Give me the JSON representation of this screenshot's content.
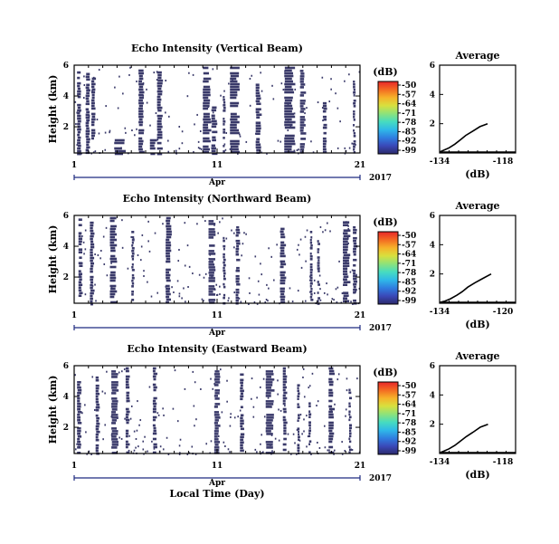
{
  "chart_data": [
    {
      "type": "heatmap",
      "title": "Echo Intensity (Vertical Beam)",
      "ylabel": "Height (km)",
      "y_ticks": [
        "6",
        "4",
        "2"
      ],
      "x_ticks": [
        "1",
        "11",
        "21"
      ],
      "month_label": "Apr",
      "year_label": "2017",
      "colorbar": {
        "unit": "(dB)",
        "ticks": [
          "-50",
          "-57",
          "-64",
          "-71",
          "-78",
          "-85",
          "-92",
          "-99"
        ],
        "colors": [
          "#2c2a6b",
          "#3a48b8",
          "#2f7de0",
          "#2fb8e8",
          "#46dcc0",
          "#8ee27a",
          "#d8e03e",
          "#f6b22a",
          "#f36a22",
          "#e8262a"
        ]
      },
      "bands": [
        [
          1.2,
          1.5,
          0.3,
          5.6
        ],
        [
          1.8,
          2.1,
          0.3,
          5.5
        ],
        [
          2.2,
          2.5,
          1.0,
          5.2
        ],
        [
          3.8,
          4.6,
          0.3,
          1.2
        ],
        [
          5.5,
          5.9,
          0.3,
          5.9
        ],
        [
          6.3,
          6.8,
          0.3,
          1.2
        ],
        [
          6.8,
          7.2,
          0.3,
          5.6
        ],
        [
          10.0,
          10.6,
          0.3,
          5.9
        ],
        [
          10.6,
          11.0,
          0.3,
          3.5
        ],
        [
          11.4,
          11.6,
          0.3,
          4.0
        ],
        [
          11.9,
          12.6,
          0.3,
          5.9
        ],
        [
          13.7,
          14.1,
          0.3,
          4.8
        ],
        [
          15.7,
          16.5,
          0.3,
          5.9
        ],
        [
          16.8,
          17.2,
          0.3,
          5.7
        ],
        [
          18.4,
          18.7,
          0.3,
          3.6
        ],
        [
          20.5,
          20.7,
          0.3,
          5.0
        ]
      ],
      "noise_density": 0.05,
      "average": {
        "title": "Average",
        "xlabel": "(dB)",
        "x_ticks": [
          "-134",
          "-118"
        ],
        "xlim": [
          -134,
          -118
        ],
        "y_ticks": [
          "6",
          "4",
          "2"
        ],
        "ylim": [
          0,
          6
        ],
        "profile": [
          [
            -123.9,
            2.0
          ],
          [
            -125.5,
            1.8
          ],
          [
            -127.0,
            1.5
          ],
          [
            -128.5,
            1.2
          ],
          [
            -129.6,
            0.9
          ],
          [
            -130.8,
            0.6
          ],
          [
            -132.0,
            0.35
          ],
          [
            -133.2,
            0.18
          ],
          [
            -133.9,
            0.08
          ]
        ]
      }
    },
    {
      "type": "heatmap",
      "title": "Echo Intensity (Northward Beam)",
      "ylabel": "Height (km)",
      "y_ticks": [
        "6",
        "4",
        "2"
      ],
      "x_ticks": [
        "1",
        "11",
        "21"
      ],
      "month_label": "Apr",
      "year_label": "2017",
      "colorbar": {
        "unit": "(dB)",
        "ticks": [
          "-50",
          "-57",
          "-64",
          "-71",
          "-78",
          "-85",
          "-92",
          "-99"
        ],
        "colors": [
          "#2c2a6b",
          "#3a48b8",
          "#2f7de0",
          "#2fb8e8",
          "#46dcc0",
          "#8ee27a",
          "#d8e03e",
          "#f6b22a",
          "#f36a22",
          "#e8262a"
        ]
      },
      "bands": [
        [
          1.3,
          1.6,
          0.3,
          5.8
        ],
        [
          2.1,
          2.4,
          0.3,
          5.6
        ],
        [
          3.5,
          4.0,
          0.3,
          5.9
        ],
        [
          5.0,
          5.2,
          0.3,
          5.0
        ],
        [
          7.4,
          7.8,
          0.3,
          5.9
        ],
        [
          10.4,
          10.9,
          0.3,
          5.7
        ],
        [
          11.4,
          11.6,
          0.3,
          4.6
        ],
        [
          12.3,
          12.6,
          0.3,
          5.3
        ],
        [
          15.4,
          15.8,
          0.3,
          5.2
        ],
        [
          17.5,
          17.7,
          0.3,
          5.0
        ],
        [
          18.0,
          18.2,
          0.3,
          4.4
        ],
        [
          19.8,
          20.3,
          0.3,
          5.8
        ],
        [
          20.5,
          20.8,
          0.3,
          5.3
        ]
      ],
      "noise_density": 0.06,
      "average": {
        "title": "Average",
        "xlabel": "(dB)",
        "x_ticks": [
          "-134",
          "-120"
        ],
        "xlim": [
          -134,
          -120
        ],
        "y_ticks": [
          "6",
          "4",
          "2"
        ],
        "ylim": [
          0,
          6
        ],
        "profile": [
          [
            -124.5,
            2.0
          ],
          [
            -126.0,
            1.7
          ],
          [
            -127.5,
            1.4
          ],
          [
            -128.8,
            1.1
          ],
          [
            -129.8,
            0.8
          ],
          [
            -130.8,
            0.55
          ],
          [
            -132.0,
            0.3
          ],
          [
            -133.0,
            0.15
          ],
          [
            -133.9,
            0.06
          ]
        ]
      }
    },
    {
      "type": "heatmap",
      "title": "Echo Intensity (Eastward Beam)",
      "ylabel": "Height (km)",
      "y_ticks": [
        "6",
        "4",
        "2"
      ],
      "x_ticks": [
        "1",
        "11",
        "21"
      ],
      "month_label": "Apr",
      "year_label": "2017",
      "xlabel": "Local Time (Day)",
      "colorbar": {
        "unit": "(dB)",
        "ticks": [
          "-50",
          "-57",
          "-64",
          "-71",
          "-78",
          "-85",
          "-92",
          "-99"
        ],
        "colors": [
          "#2c2a6b",
          "#3a48b8",
          "#2f7de0",
          "#2fb8e8",
          "#46dcc0",
          "#8ee27a",
          "#d8e03e",
          "#f6b22a",
          "#f36a22",
          "#e8262a"
        ]
      },
      "bands": [
        [
          1.2,
          1.5,
          0.3,
          5.0
        ],
        [
          2.5,
          2.8,
          0.3,
          5.3
        ],
        [
          3.6,
          4.1,
          0.3,
          5.7
        ],
        [
          4.6,
          4.9,
          0.3,
          5.9
        ],
        [
          6.5,
          6.8,
          0.3,
          5.9
        ],
        [
          10.8,
          11.2,
          0.3,
          5.7
        ],
        [
          12.6,
          12.9,
          0.3,
          5.5
        ],
        [
          14.4,
          15.0,
          0.3,
          5.7
        ],
        [
          15.6,
          15.9,
          0.3,
          5.9
        ],
        [
          16.6,
          16.8,
          0.3,
          4.8
        ],
        [
          17.4,
          17.6,
          0.3,
          3.8
        ],
        [
          18.8,
          19.2,
          0.3,
          5.9
        ],
        [
          20.2,
          20.4,
          0.3,
          4.5
        ]
      ],
      "noise_density": 0.06,
      "average": {
        "title": "Average",
        "xlabel": "(dB)",
        "x_ticks": [
          "-134",
          "-118"
        ],
        "xlim": [
          -134,
          -118
        ],
        "y_ticks": [
          "6",
          "4",
          "2"
        ],
        "ylim": [
          0,
          6
        ],
        "profile": [
          [
            -123.8,
            2.0
          ],
          [
            -125.4,
            1.8
          ],
          [
            -127.0,
            1.45
          ],
          [
            -128.4,
            1.15
          ],
          [
            -129.6,
            0.85
          ],
          [
            -130.8,
            0.55
          ],
          [
            -132.0,
            0.32
          ],
          [
            -133.2,
            0.15
          ],
          [
            -133.9,
            0.06
          ]
        ]
      }
    }
  ]
}
